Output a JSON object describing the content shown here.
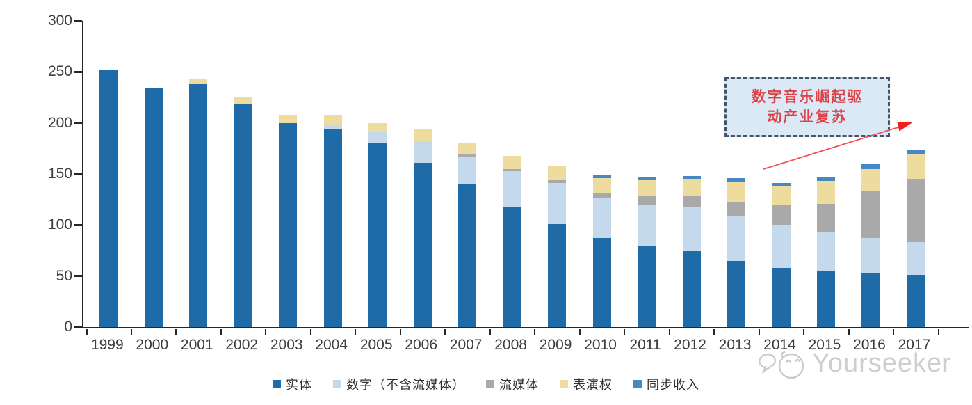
{
  "chart_data": {
    "type": "bar",
    "stacked": true,
    "title": "",
    "xlabel": "",
    "ylabel": "",
    "categories": [
      "1999",
      "2000",
      "2001",
      "2002",
      "2003",
      "2004",
      "2005",
      "2006",
      "2007",
      "2008",
      "2009",
      "2010",
      "2011",
      "2012",
      "2013",
      "2014",
      "2015",
      "2016",
      "2017"
    ],
    "series": [
      {
        "name": "实体",
        "color": "#1F6BA8",
        "values": [
          252,
          234,
          238,
          219,
          200,
          194,
          180,
          161,
          140,
          117,
          101,
          87,
          80,
          74,
          65,
          58,
          55,
          53,
          51
        ]
      },
      {
        "name": "数字（不含流媒体）",
        "color": "#C5D9ED",
        "values": [
          0,
          0,
          0,
          0,
          0,
          4,
          11,
          21,
          27,
          36,
          40,
          40,
          40,
          43,
          44,
          42,
          38,
          34,
          32
        ]
      },
      {
        "name": "流媒体",
        "color": "#A9A9A9",
        "values": [
          0,
          0,
          0,
          0,
          0,
          0,
          0,
          1,
          2,
          2,
          3,
          4,
          9,
          11,
          14,
          19,
          28,
          46,
          62
        ]
      },
      {
        "name": "表演权",
        "color": "#EDDC9E",
        "values": [
          0,
          0,
          5,
          7,
          8,
          10,
          9,
          11,
          12,
          13,
          14,
          15,
          15,
          17,
          19,
          19,
          22,
          22,
          24
        ]
      },
      {
        "name": "同步收入",
        "color": "#4589C4",
        "values": [
          0,
          0,
          0,
          0,
          0,
          0,
          0,
          0,
          0,
          0,
          0,
          3,
          3,
          3,
          4,
          3,
          4,
          5,
          4
        ]
      }
    ],
    "ylim": [
      0,
      300
    ],
    "yticks": [
      "0",
      "50",
      "100",
      "150",
      "200",
      "250",
      "300"
    ],
    "grid": false,
    "legend_position": "bottom"
  },
  "annotation": {
    "line1": "数字音乐崛起驱",
    "line2": "动产业复苏",
    "text_color": "#DC4247",
    "box_fill": "#DBE8F6",
    "box_border": "#44546A",
    "arrow_color": "#F04040"
  },
  "watermark": {
    "text": "Yourseeker",
    "icon": "chat-smiley-logo-icon",
    "color": "#c6c6c6"
  }
}
